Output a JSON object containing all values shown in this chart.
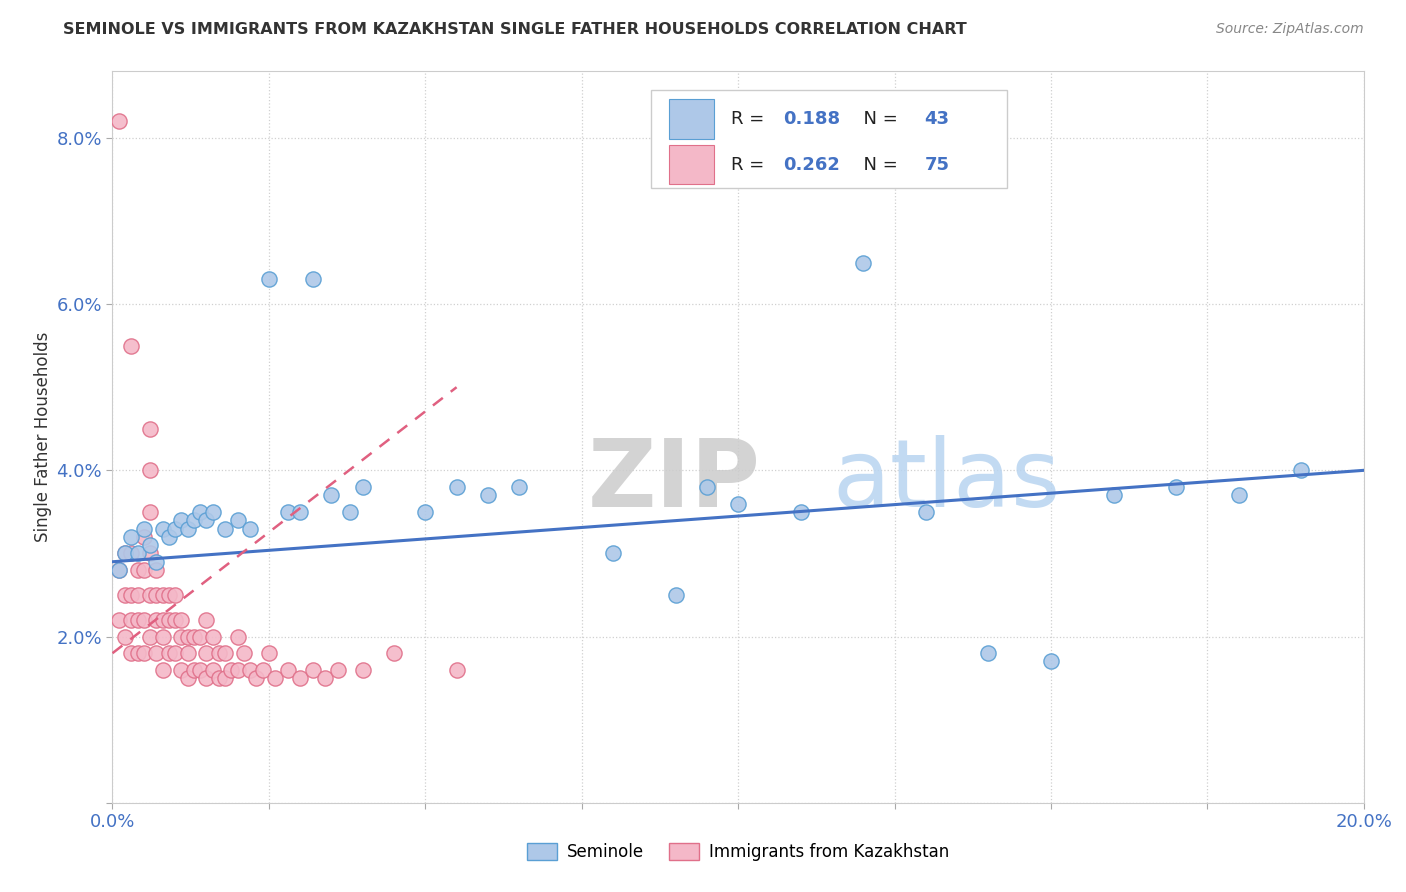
{
  "title": "SEMINOLE VS IMMIGRANTS FROM KAZAKHSTAN SINGLE FATHER HOUSEHOLDS CORRELATION CHART",
  "source": "Source: ZipAtlas.com",
  "ylabel": "Single Father Households",
  "xlim": [
    0.0,
    0.2
  ],
  "ylim": [
    0.0,
    0.088
  ],
  "xtick_positions": [
    0.0,
    0.025,
    0.05,
    0.075,
    0.1,
    0.125,
    0.15,
    0.175,
    0.2
  ],
  "xtick_labels": [
    "0.0%",
    "",
    "",
    "",
    "",
    "",
    "",
    "",
    "20.0%"
  ],
  "ytick_positions": [
    0.0,
    0.02,
    0.04,
    0.06,
    0.08
  ],
  "ytick_labels": [
    "",
    "2.0%",
    "4.0%",
    "6.0%",
    "8.0%"
  ],
  "color_blue": "#aec8e8",
  "color_blue_edge": "#5a9fd4",
  "color_pink": "#f4b8c8",
  "color_pink_edge": "#e0708a",
  "color_blue_line": "#4472c4",
  "color_pink_line": "#e06080",
  "watermark_zip": "ZIP",
  "watermark_atlas": "atlas",
  "background_color": "#ffffff",
  "grid_color": "#d0d0d0",
  "seminole_x": [
    0.001,
    0.002,
    0.003,
    0.004,
    0.005,
    0.006,
    0.007,
    0.008,
    0.009,
    0.01,
    0.011,
    0.012,
    0.013,
    0.014,
    0.015,
    0.016,
    0.018,
    0.02,
    0.022,
    0.025,
    0.028,
    0.03,
    0.032,
    0.035,
    0.038,
    0.04,
    0.05,
    0.055,
    0.06,
    0.065,
    0.08,
    0.09,
    0.095,
    0.1,
    0.11,
    0.12,
    0.13,
    0.14,
    0.15,
    0.16,
    0.17,
    0.18,
    0.19
  ],
  "seminole_y": [
    0.028,
    0.03,
    0.032,
    0.03,
    0.033,
    0.031,
    0.029,
    0.033,
    0.032,
    0.033,
    0.034,
    0.033,
    0.034,
    0.035,
    0.034,
    0.035,
    0.033,
    0.034,
    0.033,
    0.063,
    0.035,
    0.035,
    0.063,
    0.037,
    0.035,
    0.038,
    0.035,
    0.038,
    0.037,
    0.038,
    0.03,
    0.025,
    0.038,
    0.036,
    0.035,
    0.065,
    0.035,
    0.018,
    0.017,
    0.037,
    0.038,
    0.037,
    0.04
  ],
  "kaz_x": [
    0.001,
    0.001,
    0.001,
    0.002,
    0.002,
    0.002,
    0.003,
    0.003,
    0.003,
    0.003,
    0.003,
    0.004,
    0.004,
    0.004,
    0.004,
    0.005,
    0.005,
    0.005,
    0.005,
    0.006,
    0.006,
    0.006,
    0.006,
    0.006,
    0.006,
    0.007,
    0.007,
    0.007,
    0.007,
    0.008,
    0.008,
    0.008,
    0.008,
    0.009,
    0.009,
    0.009,
    0.01,
    0.01,
    0.01,
    0.011,
    0.011,
    0.011,
    0.012,
    0.012,
    0.012,
    0.013,
    0.013,
    0.014,
    0.014,
    0.015,
    0.015,
    0.015,
    0.016,
    0.016,
    0.017,
    0.017,
    0.018,
    0.018,
    0.019,
    0.02,
    0.02,
    0.021,
    0.022,
    0.023,
    0.024,
    0.025,
    0.026,
    0.028,
    0.03,
    0.032,
    0.034,
    0.036,
    0.04,
    0.045,
    0.055
  ],
  "kaz_y": [
    0.082,
    0.028,
    0.022,
    0.03,
    0.025,
    0.02,
    0.055,
    0.03,
    0.025,
    0.022,
    0.018,
    0.028,
    0.025,
    0.022,
    0.018,
    0.032,
    0.028,
    0.022,
    0.018,
    0.045,
    0.04,
    0.035,
    0.03,
    0.025,
    0.02,
    0.028,
    0.025,
    0.022,
    0.018,
    0.025,
    0.022,
    0.02,
    0.016,
    0.025,
    0.022,
    0.018,
    0.025,
    0.022,
    0.018,
    0.022,
    0.02,
    0.016,
    0.02,
    0.018,
    0.015,
    0.02,
    0.016,
    0.02,
    0.016,
    0.022,
    0.018,
    0.015,
    0.02,
    0.016,
    0.018,
    0.015,
    0.018,
    0.015,
    0.016,
    0.02,
    0.016,
    0.018,
    0.016,
    0.015,
    0.016,
    0.018,
    0.015,
    0.016,
    0.015,
    0.016,
    0.015,
    0.016,
    0.016,
    0.018,
    0.016
  ],
  "blue_line_x": [
    0.0,
    0.2
  ],
  "blue_line_y": [
    0.029,
    0.04
  ],
  "pink_line_x": [
    0.0,
    0.055
  ],
  "pink_line_y": [
    0.018,
    0.05
  ]
}
